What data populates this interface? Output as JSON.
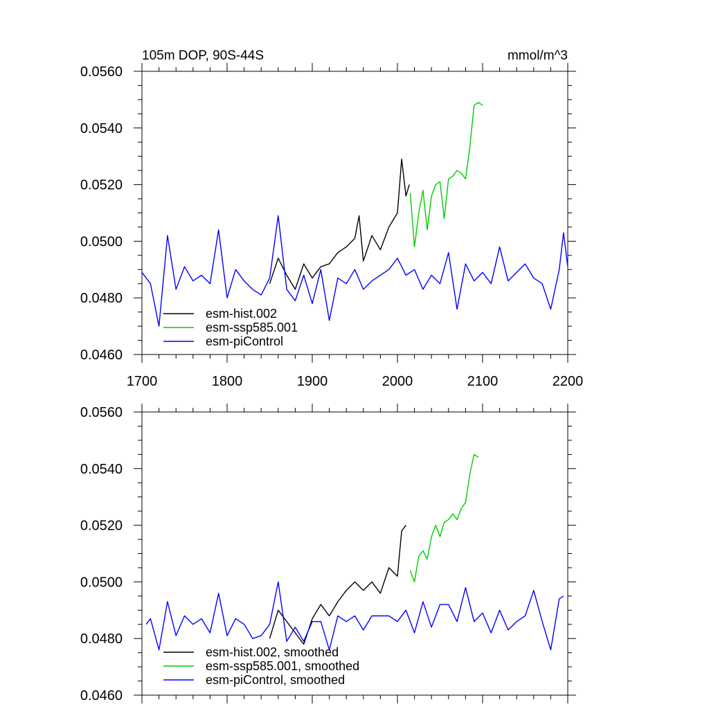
{
  "chart_data": [
    {
      "type": "line",
      "title": "105m DOP, 90S-44S",
      "units": "mmol/m^3",
      "xlim": [
        1700,
        2200
      ],
      "ylim": [
        0.046,
        0.056
      ],
      "x_ticks": [
        "1700",
        "1800",
        "1900",
        "2000",
        "2100",
        "2200"
      ],
      "y_ticks": [
        "0.0460",
        "0.0480",
        "0.0500",
        "0.0520",
        "0.0540",
        "0.0560"
      ],
      "legend_position": "bottom-left",
      "series": [
        {
          "name": "esm-hist.002",
          "color": "#000000",
          "x": [
            1850,
            1860,
            1870,
            1880,
            1890,
            1900,
            1910,
            1920,
            1930,
            1940,
            1950,
            1955,
            1960,
            1970,
            1980,
            1990,
            2000,
            2005,
            2010,
            2014
          ],
          "y": [
            0.0485,
            0.0494,
            0.0488,
            0.0483,
            0.0492,
            0.0487,
            0.0491,
            0.0492,
            0.0496,
            0.0498,
            0.0501,
            0.0509,
            0.0493,
            0.0502,
            0.0497,
            0.0505,
            0.051,
            0.0529,
            0.0516,
            0.052
          ]
        },
        {
          "name": "esm-ssp585.001",
          "color": "#00cc00",
          "x": [
            2015,
            2020,
            2025,
            2030,
            2035,
            2040,
            2045,
            2050,
            2055,
            2060,
            2065,
            2070,
            2075,
            2080,
            2085,
            2090,
            2095,
            2100
          ],
          "y": [
            0.0517,
            0.0498,
            0.051,
            0.0518,
            0.0504,
            0.0516,
            0.052,
            0.0521,
            0.0508,
            0.0522,
            0.0523,
            0.0525,
            0.0524,
            0.0522,
            0.0533,
            0.0548,
            0.0549,
            0.0548
          ]
        },
        {
          "name": "esm-piControl",
          "color": "#0000ff",
          "x": [
            1700,
            1710,
            1720,
            1730,
            1740,
            1750,
            1760,
            1770,
            1780,
            1790,
            1800,
            1810,
            1820,
            1830,
            1840,
            1850,
            1860,
            1870,
            1880,
            1890,
            1900,
            1910,
            1920,
            1930,
            1940,
            1950,
            1960,
            1970,
            1980,
            1990,
            2000,
            2010,
            2020,
            2030,
            2040,
            2050,
            2060,
            2070,
            2080,
            2090,
            2100,
            2110,
            2120,
            2130,
            2140,
            2150,
            2160,
            2170,
            2180,
            2190,
            2195,
            2200
          ],
          "y": [
            0.0489,
            0.0485,
            0.047,
            0.0502,
            0.0483,
            0.0491,
            0.0486,
            0.0488,
            0.0485,
            0.0504,
            0.048,
            0.049,
            0.0486,
            0.0483,
            0.0481,
            0.0487,
            0.0509,
            0.0483,
            0.0479,
            0.0488,
            0.0478,
            0.049,
            0.0472,
            0.0487,
            0.0485,
            0.049,
            0.0483,
            0.0486,
            0.0488,
            0.049,
            0.0494,
            0.0488,
            0.049,
            0.0483,
            0.0488,
            0.0485,
            0.0496,
            0.0476,
            0.0492,
            0.0486,
            0.0489,
            0.0485,
            0.0498,
            0.0486,
            0.0489,
            0.0492,
            0.0487,
            0.0485,
            0.0476,
            0.049,
            0.0503,
            0.0491
          ]
        }
      ]
    },
    {
      "type": "line",
      "title": "",
      "units": "",
      "xlim": [
        1700,
        2200
      ],
      "ylim": [
        0.046,
        0.056
      ],
      "x_ticks": [],
      "y_ticks": [
        "0.0460",
        "0.0480",
        "0.0500",
        "0.0520",
        "0.0540",
        "0.0560"
      ],
      "legend_position": "bottom-left",
      "series": [
        {
          "name": "esm-hist.002, smoothed",
          "color": "#000000",
          "x": [
            1850,
            1860,
            1870,
            1880,
            1890,
            1900,
            1910,
            1920,
            1930,
            1940,
            1950,
            1960,
            1970,
            1980,
            1990,
            2000,
            2005,
            2010
          ],
          "y": [
            0.048,
            0.049,
            0.0486,
            0.0482,
            0.0478,
            0.0487,
            0.0492,
            0.0488,
            0.0493,
            0.0497,
            0.05,
            0.0497,
            0.05,
            0.0496,
            0.0505,
            0.0502,
            0.0518,
            0.052
          ]
        },
        {
          "name": "esm-ssp585.001, smoothed",
          "color": "#00cc00",
          "x": [
            2015,
            2020,
            2025,
            2030,
            2035,
            2040,
            2045,
            2050,
            2055,
            2060,
            2065,
            2070,
            2075,
            2080,
            2085,
            2090,
            2095
          ],
          "y": [
            0.0504,
            0.05,
            0.0509,
            0.0511,
            0.0508,
            0.0516,
            0.052,
            0.0516,
            0.0521,
            0.0522,
            0.0524,
            0.0522,
            0.0526,
            0.0528,
            0.0538,
            0.0545,
            0.0544
          ]
        },
        {
          "name": "esm-piControl, smoothed",
          "color": "#0000ff",
          "x": [
            1705,
            1710,
            1720,
            1730,
            1740,
            1750,
            1760,
            1770,
            1780,
            1790,
            1800,
            1810,
            1820,
            1830,
            1840,
            1850,
            1860,
            1870,
            1880,
            1890,
            1900,
            1910,
            1920,
            1930,
            1940,
            1950,
            1960,
            1970,
            1980,
            1990,
            2000,
            2010,
            2020,
            2030,
            2040,
            2050,
            2060,
            2070,
            2080,
            2090,
            2100,
            2110,
            2120,
            2130,
            2140,
            2150,
            2160,
            2170,
            2180,
            2190,
            2195
          ],
          "y": [
            0.0485,
            0.0487,
            0.0476,
            0.0493,
            0.0481,
            0.0488,
            0.0485,
            0.0487,
            0.0482,
            0.0496,
            0.0481,
            0.0487,
            0.0485,
            0.048,
            0.0481,
            0.0485,
            0.05,
            0.0479,
            0.0484,
            0.0479,
            0.0486,
            0.0486,
            0.0476,
            0.0488,
            0.0486,
            0.0488,
            0.0483,
            0.0488,
            0.0488,
            0.0488,
            0.0486,
            0.049,
            0.0482,
            0.0493,
            0.0484,
            0.0492,
            0.0492,
            0.0486,
            0.0498,
            0.0486,
            0.0489,
            0.0482,
            0.049,
            0.0483,
            0.0486,
            0.0488,
            0.0497,
            0.0486,
            0.0476,
            0.0494,
            0.0495
          ]
        }
      ]
    }
  ]
}
